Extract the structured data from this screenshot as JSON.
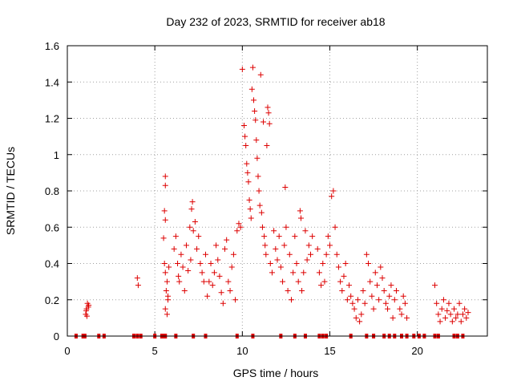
{
  "chart_data": {
    "type": "scatter",
    "title": "Day 232 of 2023, SRMTID for receiver ab18",
    "xlabel": "GPS time / hours",
    "ylabel": "SRMTID / TECUs",
    "xlim": [
      0,
      24
    ],
    "ylim": [
      0,
      1.6
    ],
    "xticks": [
      0,
      5,
      10,
      15,
      20
    ],
    "xtick_labels": [
      "0",
      "5",
      "10",
      "15",
      "20"
    ],
    "yticks": [
      0,
      0.2,
      0.4,
      0.6,
      0.8,
      1.0,
      1.2,
      1.4,
      1.6
    ],
    "ytick_labels": [
      "0",
      "0.2",
      "0.4",
      "0.6",
      "0.8",
      "1",
      "1.2",
      "1.4",
      "1.6"
    ],
    "grid": true,
    "marker": "+",
    "color": "#dd0000",
    "zero_markers_x": [
      0.5,
      0.9,
      1.0,
      1.8,
      2.1,
      3.8,
      4.0,
      4.2,
      5.0,
      5.4,
      5.5,
      5.6,
      6.2,
      7.2,
      7.9,
      9.7,
      10.6,
      12.2,
      13.0,
      13.6,
      14.4,
      14.6,
      14.8,
      16.2,
      17.1,
      17.5,
      18.1,
      18.4,
      18.7,
      19.1,
      19.4,
      19.8,
      20.1,
      20.4,
      21.0,
      21.2,
      22.1,
      22.3,
      22.6
    ],
    "series": [
      {
        "name": "SRMTID",
        "points": [
          [
            1.05,
            0.12
          ],
          [
            1.1,
            0.15
          ],
          [
            1.15,
            0.18
          ],
          [
            1.2,
            0.16
          ],
          [
            1.12,
            0.11
          ],
          [
            1.22,
            0.17
          ],
          [
            1.08,
            0.14
          ],
          [
            4.0,
            0.32
          ],
          [
            4.05,
            0.28
          ],
          [
            5.6,
            0.88
          ],
          [
            5.6,
            0.83
          ],
          [
            5.55,
            0.69
          ],
          [
            5.6,
            0.64
          ],
          [
            5.5,
            0.54
          ],
          [
            5.55,
            0.4
          ],
          [
            5.6,
            0.35
          ],
          [
            5.7,
            0.3
          ],
          [
            5.65,
            0.25
          ],
          [
            5.75,
            0.2
          ],
          [
            5.6,
            0.15
          ],
          [
            5.7,
            0.12
          ],
          [
            5.8,
            0.38
          ],
          [
            5.75,
            0.22
          ],
          [
            6.1,
            0.48
          ],
          [
            6.2,
            0.55
          ],
          [
            6.3,
            0.4
          ],
          [
            6.35,
            0.33
          ],
          [
            6.4,
            0.3
          ],
          [
            6.5,
            0.45
          ],
          [
            6.6,
            0.38
          ],
          [
            6.7,
            0.25
          ],
          [
            6.8,
            0.5
          ],
          [
            6.9,
            0.36
          ],
          [
            7.0,
            0.6
          ],
          [
            7.05,
            0.42
          ],
          [
            7.1,
            0.7
          ],
          [
            7.15,
            0.74
          ],
          [
            7.2,
            0.58
          ],
          [
            7.3,
            0.63
          ],
          [
            7.4,
            0.48
          ],
          [
            7.5,
            0.55
          ],
          [
            7.6,
            0.4
          ],
          [
            7.7,
            0.35
          ],
          [
            7.8,
            0.3
          ],
          [
            7.9,
            0.45
          ],
          [
            8.0,
            0.22
          ],
          [
            8.1,
            0.3
          ],
          [
            8.2,
            0.4
          ],
          [
            8.3,
            0.28
          ],
          [
            8.4,
            0.35
          ],
          [
            8.5,
            0.5
          ],
          [
            8.6,
            0.42
          ],
          [
            8.7,
            0.33
          ],
          [
            8.8,
            0.24
          ],
          [
            8.9,
            0.18
          ],
          [
            9.0,
            0.48
          ],
          [
            9.1,
            0.53
          ],
          [
            9.2,
            0.3
          ],
          [
            9.3,
            0.25
          ],
          [
            9.4,
            0.38
          ],
          [
            9.5,
            0.45
          ],
          [
            9.6,
            0.2
          ],
          [
            9.7,
            0.58
          ],
          [
            9.8,
            0.62
          ],
          [
            9.9,
            0.6
          ],
          [
            10.0,
            1.47
          ],
          [
            10.1,
            1.16
          ],
          [
            10.15,
            1.1
          ],
          [
            10.2,
            1.05
          ],
          [
            10.25,
            0.95
          ],
          [
            10.3,
            0.9
          ],
          [
            10.35,
            0.85
          ],
          [
            10.4,
            0.75
          ],
          [
            10.45,
            0.7
          ],
          [
            10.5,
            0.65
          ],
          [
            10.55,
            1.36
          ],
          [
            10.6,
            1.48
          ],
          [
            10.65,
            1.3
          ],
          [
            10.7,
            1.24
          ],
          [
            10.75,
            1.19
          ],
          [
            10.8,
            1.08
          ],
          [
            10.85,
            0.98
          ],
          [
            10.9,
            0.88
          ],
          [
            10.95,
            0.8
          ],
          [
            11.0,
            0.72
          ],
          [
            11.05,
            1.44
          ],
          [
            11.1,
            0.68
          ],
          [
            11.15,
            0.6
          ],
          [
            11.2,
            1.18
          ],
          [
            11.25,
            0.55
          ],
          [
            11.3,
            0.5
          ],
          [
            11.35,
            0.45
          ],
          [
            11.4,
            1.05
          ],
          [
            11.45,
            1.26
          ],
          [
            11.5,
            1.23
          ],
          [
            11.55,
            1.17
          ],
          [
            11.6,
            0.4
          ],
          [
            11.7,
            0.35
          ],
          [
            11.8,
            0.58
          ],
          [
            11.9,
            0.48
          ],
          [
            12.0,
            0.42
          ],
          [
            12.1,
            0.55
          ],
          [
            12.2,
            0.38
          ],
          [
            12.3,
            0.3
          ],
          [
            12.4,
            0.5
          ],
          [
            12.45,
            0.82
          ],
          [
            12.5,
            0.6
          ],
          [
            12.6,
            0.25
          ],
          [
            12.7,
            0.45
          ],
          [
            12.8,
            0.2
          ],
          [
            12.9,
            0.35
          ],
          [
            13.0,
            0.55
          ],
          [
            13.1,
            0.4
          ],
          [
            13.2,
            0.3
          ],
          [
            13.3,
            0.69
          ],
          [
            13.35,
            0.65
          ],
          [
            13.4,
            0.25
          ],
          [
            13.5,
            0.35
          ],
          [
            13.6,
            0.58
          ],
          [
            13.7,
            0.42
          ],
          [
            13.8,
            0.5
          ],
          [
            13.9,
            0.45
          ],
          [
            14.0,
            0.55
          ],
          [
            14.3,
            0.48
          ],
          [
            14.4,
            0.35
          ],
          [
            14.5,
            0.28
          ],
          [
            14.6,
            0.4
          ],
          [
            14.7,
            0.3
          ],
          [
            14.8,
            0.45
          ],
          [
            14.9,
            0.55
          ],
          [
            15.0,
            0.5
          ],
          [
            15.1,
            0.77
          ],
          [
            15.2,
            0.8
          ],
          [
            15.3,
            0.6
          ],
          [
            15.4,
            0.45
          ],
          [
            15.5,
            0.38
          ],
          [
            15.6,
            0.3
          ],
          [
            15.7,
            0.25
          ],
          [
            15.8,
            0.33
          ],
          [
            15.9,
            0.4
          ],
          [
            16.0,
            0.2
          ],
          [
            16.1,
            0.28
          ],
          [
            16.2,
            0.22
          ],
          [
            16.3,
            0.18
          ],
          [
            16.4,
            0.15
          ],
          [
            16.5,
            0.1
          ],
          [
            16.6,
            0.2
          ],
          [
            16.7,
            0.08
          ],
          [
            16.8,
            0.12
          ],
          [
            16.9,
            0.25
          ],
          [
            17.0,
            0.18
          ],
          [
            17.1,
            0.45
          ],
          [
            17.2,
            0.4
          ],
          [
            17.3,
            0.3
          ],
          [
            17.4,
            0.22
          ],
          [
            17.5,
            0.15
          ],
          [
            17.6,
            0.35
          ],
          [
            17.7,
            0.28
          ],
          [
            17.8,
            0.2
          ],
          [
            17.9,
            0.38
          ],
          [
            18.0,
            0.32
          ],
          [
            18.1,
            0.25
          ],
          [
            18.2,
            0.18
          ],
          [
            18.3,
            0.15
          ],
          [
            18.4,
            0.22
          ],
          [
            18.5,
            0.28
          ],
          [
            18.6,
            0.1
          ],
          [
            18.7,
            0.2
          ],
          [
            18.8,
            0.25
          ],
          [
            19.0,
            0.15
          ],
          [
            19.1,
            0.12
          ],
          [
            19.2,
            0.22
          ],
          [
            19.3,
            0.18
          ],
          [
            19.4,
            0.1
          ],
          [
            21.0,
            0.28
          ],
          [
            21.1,
            0.18
          ],
          [
            21.2,
            0.12
          ],
          [
            21.3,
            0.08
          ],
          [
            21.4,
            0.15
          ],
          [
            21.5,
            0.2
          ],
          [
            21.6,
            0.1
          ],
          [
            21.7,
            0.14
          ],
          [
            21.8,
            0.18
          ],
          [
            21.9,
            0.12
          ],
          [
            22.0,
            0.08
          ],
          [
            22.1,
            0.15
          ],
          [
            22.2,
            0.1
          ],
          [
            22.3,
            0.12
          ],
          [
            22.4,
            0.18
          ],
          [
            22.5,
            0.08
          ],
          [
            22.6,
            0.12
          ],
          [
            22.7,
            0.15
          ],
          [
            22.8,
            0.1
          ],
          [
            22.9,
            0.13
          ]
        ]
      }
    ]
  }
}
